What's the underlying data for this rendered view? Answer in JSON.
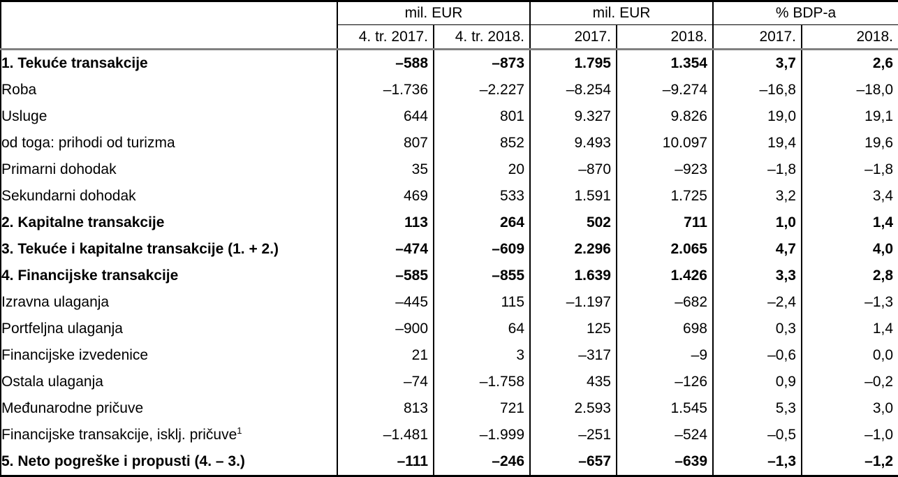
{
  "chart_data": {
    "type": "table",
    "column_groups": [
      {
        "label": "mil. EUR",
        "span": 2
      },
      {
        "label": "mil. EUR",
        "span": 2
      },
      {
        "label": "% BDP-a",
        "span": 2
      }
    ],
    "columns": [
      "",
      "4. tr. 2017.",
      "4. tr. 2018.",
      "2017.",
      "2018.",
      "2017.",
      "2018."
    ],
    "rows": [
      {
        "label": "1. Tekuće transakcije",
        "bold": true,
        "indent": 0,
        "values": [
          "–588",
          "–873",
          "1.795",
          "1.354",
          "3,7",
          "2,6"
        ]
      },
      {
        "label": "Roba",
        "bold": false,
        "indent": 1,
        "values": [
          "–1.736",
          "–2.227",
          "–8.254",
          "–9.274",
          "–16,8",
          "–18,0"
        ]
      },
      {
        "label": "Usluge",
        "bold": false,
        "indent": 1,
        "values": [
          "644",
          "801",
          "9.327",
          "9.826",
          "19,0",
          "19,1"
        ]
      },
      {
        "label": "od toga: prihodi od turizma",
        "bold": false,
        "indent": 2,
        "values": [
          "807",
          "852",
          "9.493",
          "10.097",
          "19,4",
          "19,6"
        ]
      },
      {
        "label": "Primarni dohodak",
        "bold": false,
        "indent": 1,
        "values": [
          "35",
          "20",
          "–870",
          "–923",
          "–1,8",
          "–1,8"
        ]
      },
      {
        "label": "Sekundarni dohodak",
        "bold": false,
        "indent": 1,
        "values": [
          "469",
          "533",
          "1.591",
          "1.725",
          "3,2",
          "3,4"
        ]
      },
      {
        "label": "2. Kapitalne transakcije",
        "bold": true,
        "indent": 0,
        "values": [
          "113",
          "264",
          "502",
          "711",
          "1,0",
          "1,4"
        ]
      },
      {
        "label": "3. Tekuće i kapitalne transakcije (1. + 2.)",
        "bold": true,
        "indent": 0,
        "values": [
          "–474",
          "–609",
          "2.296",
          "2.065",
          "4,7",
          "4,0"
        ]
      },
      {
        "label": "4. Financijske transakcije",
        "bold": true,
        "indent": 0,
        "values": [
          "–585",
          "–855",
          "1.639",
          "1.426",
          "3,3",
          "2,8"
        ]
      },
      {
        "label": "Izravna ulaganja",
        "bold": false,
        "indent": 1,
        "values": [
          "–445",
          "115",
          "–1.197",
          "–682",
          "–2,4",
          "–1,3"
        ]
      },
      {
        "label": "Portfeljna ulaganja",
        "bold": false,
        "indent": 1,
        "values": [
          "–900",
          "64",
          "125",
          "698",
          "0,3",
          "1,4"
        ]
      },
      {
        "label": "Financijske izvedenice",
        "bold": false,
        "indent": 1,
        "values": [
          "21",
          "3",
          "–317",
          "–9",
          "–0,6",
          "0,0"
        ]
      },
      {
        "label": "Ostala ulaganja",
        "bold": false,
        "indent": 1,
        "values": [
          "–74",
          "–1.758",
          "435",
          "–126",
          "0,9",
          "–0,2"
        ]
      },
      {
        "label": "Međunarodne pričuve",
        "bold": false,
        "indent": 1,
        "values": [
          "813",
          "721",
          "2.593",
          "1.545",
          "5,3",
          "3,0"
        ]
      },
      {
        "label": "Financijske transakcije, isklj. pričuve",
        "sup": "1",
        "bold": false,
        "indent": 3,
        "values": [
          "–1.481",
          "–1.999",
          "–251",
          "–524",
          "–0,5",
          "–1,0"
        ]
      },
      {
        "label": "5. Neto pogreške i propusti (4. – 3.)",
        "bold": true,
        "indent": 0,
        "values": [
          "–111",
          "–246",
          "–657",
          "–639",
          "–1,3",
          "–1,2"
        ]
      }
    ]
  },
  "colors": {
    "background": "#ffffff",
    "text": "#000000",
    "grid_border": "#000000",
    "header_separator": "#808080"
  }
}
